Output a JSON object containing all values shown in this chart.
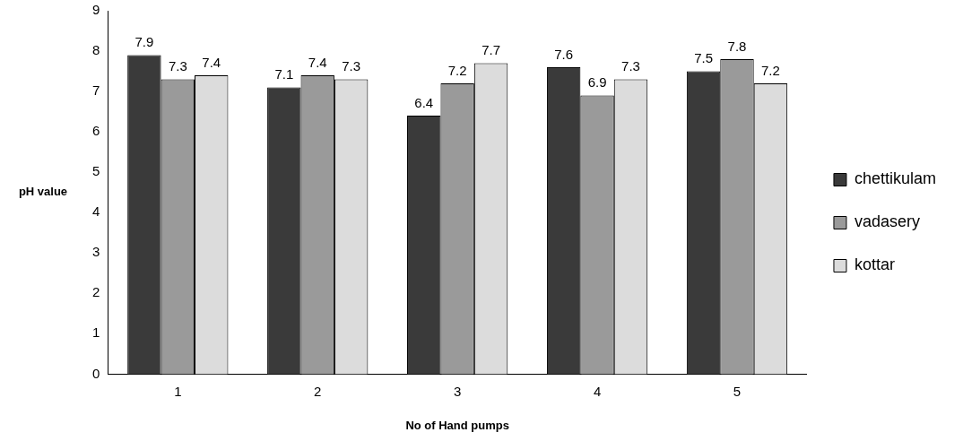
{
  "chart_data": {
    "type": "bar",
    "xlabel": "No of Hand pumps",
    "ylabel": "pH value",
    "categories": [
      "1",
      "2",
      "3",
      "4",
      "5"
    ],
    "series": [
      {
        "name": "chettikulam",
        "color": "#3a3a3a",
        "values": [
          7.9,
          7.1,
          6.4,
          7.6,
          7.5
        ]
      },
      {
        "name": "vadasery",
        "color": "#9a9a9a",
        "values": [
          7.3,
          7.4,
          7.2,
          6.9,
          7.8
        ]
      },
      {
        "name": "kottar",
        "color": "#dcdcdc",
        "values": [
          7.4,
          7.3,
          7.7,
          7.3,
          7.2
        ]
      }
    ],
    "ylim": [
      0,
      9
    ],
    "yticks": [
      0,
      1,
      2,
      3,
      4,
      5,
      6,
      7,
      8,
      9
    ],
    "grid": false,
    "legend": "right",
    "data_labels": true
  }
}
